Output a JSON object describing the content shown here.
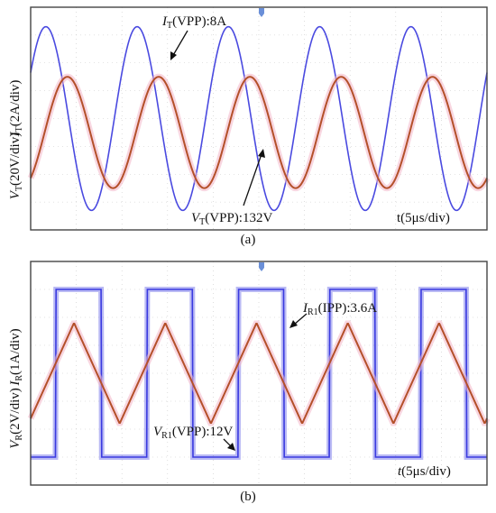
{
  "figure": {
    "panels": [
      {
        "id": "a",
        "caption": "(a)",
        "labels": {
          "y_current_sym": "I",
          "y_current_sub": "T",
          "y_current_unit": "(2A/div)",
          "y_voltage_sym": "V",
          "y_voltage_sub": "T",
          "y_voltage_unit": "(20V/div)",
          "ann_current_sym": "I",
          "ann_current_sub": "T",
          "ann_current_text": "(VPP):8A",
          "ann_voltage_sym": "V",
          "ann_voltage_sub": "T",
          "ann_voltage_text": "(VPP):132V",
          "time_axis": "t(5μs/div)"
        }
      },
      {
        "id": "b",
        "caption": "(b)",
        "labels": {
          "y_current_sym": "I",
          "y_current_sub": "R",
          "y_current_unit": "(1A/div)",
          "y_voltage_sym": "V",
          "y_voltage_sub": "R",
          "y_voltage_unit": "(2V/div)",
          "ann_current_sym": "I",
          "ann_current_sub": "R1",
          "ann_current_text": "(IPP):3.6A",
          "ann_voltage_sym": "V",
          "ann_voltage_sub": "R1",
          "ann_voltage_text": "(VPP):12V",
          "time_axis_sym": "t",
          "time_axis_text": "(5μs/div)"
        }
      }
    ]
  },
  "colors": {
    "voltage_trace_a": "#4a4ae0",
    "current_trace_a": "#b4502a",
    "current_halo": "#f3b4c6",
    "voltage_trace_b": "#3a3ae0",
    "current_trace_b": "#b4502a",
    "frame": "#444444",
    "grid": "#c8c8c8",
    "trigger_marker": "#6a8fd8"
  },
  "chart_data": [
    {
      "type": "line",
      "panel": "(a)",
      "x_label": "t(5μs/div)",
      "x_units": "div",
      "x_range": [
        0,
        10
      ],
      "y_range_div": [
        -4,
        4
      ],
      "series": [
        {
          "name": "V_T",
          "waveform": "sine",
          "peak_to_peak_label": "132V",
          "scale_per_div": "20V/div",
          "amplitude_div": 3.3,
          "period_div": 2.0,
          "phase_deg": 30
        },
        {
          "name": "I_T",
          "waveform": "sine",
          "peak_to_peak_label": "8A",
          "scale_per_div": "2A/div",
          "amplitude_div": 2.0,
          "offset_div": -0.5,
          "period_div": 2.0,
          "phase_deg": -55
        }
      ]
    },
    {
      "type": "line",
      "panel": "(b)",
      "x_label": "t(5μs/div)",
      "x_units": "div",
      "x_range": [
        0,
        10
      ],
      "y_range_div": [
        -4,
        4
      ],
      "series": [
        {
          "name": "V_R1",
          "waveform": "square",
          "peak_to_peak_label": "12V",
          "scale_per_div": "2V/div",
          "amplitude_div": 3.0,
          "period_div": 2.0,
          "high_start_div": 0.55
        },
        {
          "name": "I_R1",
          "waveform": "triangle",
          "peak_to_peak_label": "3.6A",
          "scale_per_div": "1A/div",
          "amplitude_div": 1.8,
          "period_div": 2.0,
          "peak_at_div": 0.95
        }
      ]
    }
  ]
}
